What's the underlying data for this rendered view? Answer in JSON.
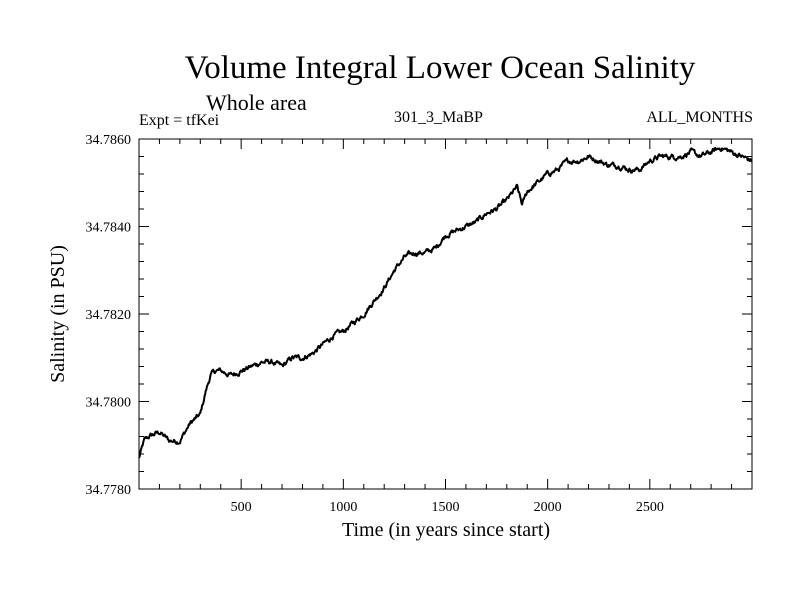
{
  "header": {
    "title": "Volume Integral Lower Ocean Salinity",
    "subtitle": "Whole area",
    "left_label": "Expt = tfKei",
    "center_label": "301_3_MaBP",
    "right_label": "ALL_MONTHS"
  },
  "chart_data": {
    "type": "line",
    "title": "Volume Integral Lower Ocean Salinity",
    "subtitle": "Whole area",
    "xlabel": "Time (in years since start)",
    "ylabel": "Salinity (in PSU)",
    "xlim": [
      0,
      3000
    ],
    "ylim": [
      34.778,
      34.786
    ],
    "xticks": [
      500,
      1000,
      1500,
      2000,
      2500
    ],
    "xtick_labels": [
      "500",
      "1000",
      "1500",
      "2000",
      "2500"
    ],
    "yticks": [
      34.778,
      34.78,
      34.782,
      34.784,
      34.786
    ],
    "ytick_labels": [
      "34.7780",
      "34.7800",
      "34.7820",
      "34.7840",
      "34.7860"
    ],
    "grid": false,
    "line_color": "#000000",
    "series": [
      {
        "x": [
          0,
          25,
          50,
          100,
          150,
          200,
          250,
          300,
          325,
          350,
          375,
          400,
          450,
          500,
          550,
          600,
          650,
          700,
          750,
          800,
          850,
          900,
          950,
          1000,
          1050,
          1100,
          1150,
          1200,
          1250,
          1300,
          1350,
          1400,
          1450,
          1500,
          1550,
          1600,
          1650,
          1700,
          1750,
          1800,
          1850,
          1875,
          1900,
          1950,
          2000,
          2050,
          2100,
          2150,
          2200,
          2250,
          2300,
          2350,
          2400,
          2450,
          2500,
          2550,
          2600,
          2650,
          2700,
          2750,
          2800,
          2850,
          2900,
          2950,
          3000
        ],
        "y": [
          34.7787,
          34.7791,
          34.7792,
          34.7793,
          34.7791,
          34.7791,
          34.7795,
          34.7797,
          34.7802,
          34.7806,
          34.7807,
          34.7807,
          34.7806,
          34.7807,
          34.7808,
          34.7809,
          34.7809,
          34.7808,
          34.781,
          34.781,
          34.7811,
          34.7813,
          34.7815,
          34.7816,
          34.7818,
          34.782,
          34.7823,
          34.7826,
          34.783,
          34.7833,
          34.7834,
          34.7834,
          34.7835,
          34.7838,
          34.7839,
          34.784,
          34.7841,
          34.7843,
          34.7844,
          34.7846,
          34.7849,
          34.7845,
          34.7848,
          34.785,
          34.7852,
          34.7853,
          34.7855,
          34.7855,
          34.7856,
          34.7855,
          34.7854,
          34.7854,
          34.7853,
          34.7853,
          34.7855,
          34.7856,
          34.7856,
          34.7856,
          34.7857,
          34.7856,
          34.7857,
          34.7858,
          34.7857,
          34.7856,
          34.7855
        ]
      }
    ]
  }
}
